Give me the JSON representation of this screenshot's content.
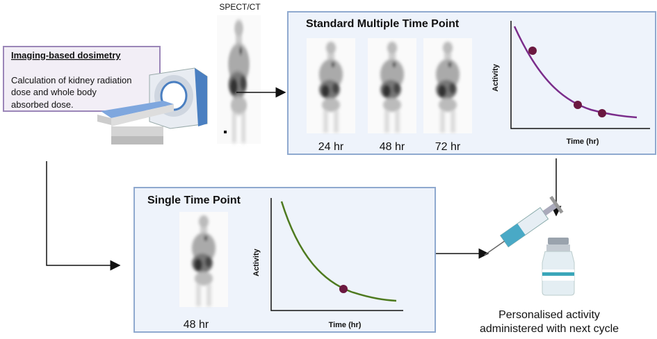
{
  "imaging_box": {
    "title": "Imaging-based dosimetry",
    "text_lines": [
      "Calculation of kidney radiation",
      "dose and whole body",
      "absorbed dose."
    ]
  },
  "spect_label": "SPECT/CT",
  "multiple": {
    "title": "Standard Multiple Time Point",
    "times": [
      "24 hr",
      "48 hr",
      "72 hr"
    ],
    "y_label": "Activity",
    "x_label": "Time (hr)"
  },
  "single": {
    "title": "Single Time Point",
    "time": "48 hr",
    "y_label": "Activity",
    "x_label": "Time (hr)"
  },
  "outcome": {
    "lines": [
      "Personalised activity",
      "administered with next cycle"
    ]
  }
}
